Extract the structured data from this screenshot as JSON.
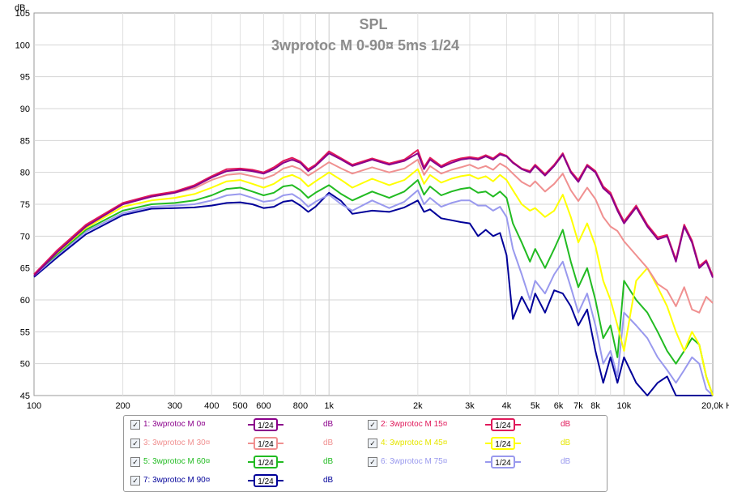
{
  "chart_data": {
    "type": "line",
    "title": "SPL",
    "subtitle": "3wprotoc M 0-90¤ 5ms 1/24",
    "ylabel": "dB",
    "xlabel_unit": "Hz",
    "x_scale": "log",
    "xlim": [
      100,
      20000
    ],
    "ylim": [
      45,
      105
    ],
    "grid": true,
    "y_ticks": [
      45,
      50,
      55,
      60,
      65,
      70,
      75,
      80,
      85,
      90,
      95,
      100,
      105
    ],
    "x_tick_labels": [
      {
        "value": 100,
        "label": "100"
      },
      {
        "value": 200,
        "label": "200"
      },
      {
        "value": 300,
        "label": "300"
      },
      {
        "value": 400,
        "label": "400"
      },
      {
        "value": 500,
        "label": "500"
      },
      {
        "value": 600,
        "label": "600"
      },
      {
        "value": 800,
        "label": "800"
      },
      {
        "value": 1000,
        "label": "1k"
      },
      {
        "value": 2000,
        "label": "2k"
      },
      {
        "value": 3000,
        "label": "3k"
      },
      {
        "value": 4000,
        "label": "4k"
      },
      {
        "value": 5000,
        "label": "5k"
      },
      {
        "value": 6000,
        "label": "6k"
      },
      {
        "value": 7000,
        "label": "7k"
      },
      {
        "value": 8000,
        "label": "8k"
      },
      {
        "value": 10000,
        "label": "10k"
      },
      {
        "value": 20000,
        "label": "20,0k Hz"
      }
    ],
    "series": [
      {
        "name": "1: 3wprotoc M 0¤",
        "color": "#8b008b",
        "x": [
          100,
          120,
          150,
          200,
          250,
          300,
          350,
          400,
          450,
          500,
          550,
          600,
          650,
          700,
          750,
          800,
          850,
          900,
          1000,
          1100,
          1200,
          1400,
          1600,
          1800,
          2000,
          2100,
          2200,
          2400,
          2600,
          2800,
          3000,
          3200,
          3400,
          3600,
          3800,
          4000,
          4200,
          4500,
          4800,
          5000,
          5400,
          5800,
          6200,
          6600,
          7000,
          7500,
          8000,
          8500,
          9000,
          9500,
          10000,
          11000,
          12000,
          13000,
          14000,
          15000,
          16000,
          17000,
          18000,
          19000,
          20000
        ],
        "y": [
          63.8,
          67.5,
          71.5,
          75.0,
          76.2,
          76.8,
          77.8,
          79.2,
          80.2,
          80.4,
          80.2,
          79.8,
          80.5,
          81.5,
          82.0,
          81.5,
          80.2,
          81.0,
          83.0,
          82.0,
          81.0,
          82.0,
          81.2,
          81.8,
          83.0,
          80.5,
          82.0,
          80.8,
          81.5,
          82.0,
          82.2,
          82.0,
          82.5,
          82.0,
          82.8,
          82.5,
          81.5,
          80.5,
          80.0,
          81.0,
          79.5,
          81.0,
          82.8,
          80.0,
          78.5,
          81.0,
          80.0,
          77.5,
          76.5,
          74.0,
          72.0,
          74.5,
          71.5,
          69.5,
          70.0,
          66.0,
          71.5,
          69.0,
          65.0,
          66.0,
          63.5
        ]
      },
      {
        "name": "2: 3wprotoc M 15¤",
        "color": "#e0195a",
        "x": [
          100,
          120,
          150,
          200,
          250,
          300,
          350,
          400,
          450,
          500,
          550,
          600,
          650,
          700,
          750,
          800,
          850,
          900,
          1000,
          1100,
          1200,
          1400,
          1600,
          1800,
          2000,
          2100,
          2200,
          2400,
          2600,
          2800,
          3000,
          3200,
          3400,
          3600,
          3800,
          4000,
          4200,
          4500,
          4800,
          5000,
          5400,
          5800,
          6200,
          6600,
          7000,
          7500,
          8000,
          8500,
          9000,
          9500,
          10000,
          11000,
          12000,
          13000,
          14000,
          15000,
          16000,
          17000,
          18000,
          19000,
          20000
        ],
        "y": [
          64.0,
          67.8,
          71.8,
          75.2,
          76.4,
          77.0,
          78.0,
          79.4,
          80.5,
          80.6,
          80.4,
          80.0,
          80.8,
          81.8,
          82.3,
          81.7,
          80.5,
          81.2,
          83.3,
          82.2,
          81.2,
          82.2,
          81.4,
          82.0,
          83.5,
          80.8,
          82.3,
          81.0,
          81.8,
          82.2,
          82.4,
          82.2,
          82.7,
          82.2,
          83.0,
          82.6,
          81.6,
          80.6,
          80.2,
          81.2,
          79.7,
          81.2,
          83.0,
          80.2,
          78.8,
          81.2,
          80.2,
          77.8,
          76.8,
          74.3,
          72.3,
          74.8,
          71.8,
          69.8,
          70.2,
          66.3,
          71.8,
          69.3,
          65.3,
          66.2,
          63.8
        ]
      },
      {
        "name": "3: 3wprotoc M 30¤",
        "color": "#f09090",
        "x": [
          100,
          120,
          150,
          200,
          250,
          300,
          350,
          400,
          450,
          500,
          550,
          600,
          650,
          700,
          750,
          800,
          850,
          900,
          1000,
          1100,
          1200,
          1400,
          1600,
          1800,
          2000,
          2100,
          2200,
          2400,
          2600,
          2800,
          3000,
          3200,
          3400,
          3600,
          3800,
          4000,
          4200,
          4500,
          4800,
          5000,
          5400,
          5800,
          6200,
          6600,
          7000,
          7500,
          8000,
          8500,
          9000,
          9500,
          10000,
          11000,
          12000,
          13000,
          14000,
          15000,
          16000,
          17000,
          18000,
          19000,
          20000
        ],
        "y": [
          64.0,
          67.6,
          71.6,
          75.0,
          76.2,
          76.8,
          77.5,
          78.8,
          79.6,
          79.8,
          79.4,
          79.0,
          79.6,
          80.6,
          81.0,
          80.5,
          79.5,
          80.2,
          81.6,
          80.6,
          79.8,
          80.8,
          80.0,
          80.6,
          82.0,
          79.6,
          81.0,
          79.8,
          80.4,
          80.8,
          81.2,
          80.6,
          81.0,
          80.4,
          81.4,
          80.8,
          79.8,
          78.5,
          77.8,
          78.6,
          77.0,
          78.2,
          79.8,
          77.2,
          75.5,
          77.6,
          75.8,
          73.0,
          71.5,
          70.8,
          69.2,
          67.0,
          65.0,
          62.5,
          61.5,
          59.0,
          62.0,
          58.5,
          58.0,
          60.5,
          59.5
        ]
      },
      {
        "name": "4: 3wprotoc M 45¤",
        "color": "#ffff00",
        "x": [
          100,
          120,
          150,
          200,
          250,
          300,
          350,
          400,
          450,
          500,
          550,
          600,
          650,
          700,
          750,
          800,
          850,
          900,
          1000,
          1100,
          1200,
          1400,
          1600,
          1800,
          2000,
          2100,
          2200,
          2400,
          2600,
          2800,
          3000,
          3200,
          3400,
          3600,
          3800,
          4000,
          4200,
          4500,
          4800,
          5000,
          5400,
          5800,
          6200,
          6600,
          7000,
          7500,
          8000,
          8500,
          9000,
          9500,
          10000,
          11000,
          12000,
          13000,
          14000,
          15000,
          16000,
          17000,
          18000,
          19000,
          20000
        ],
        "y": [
          64.0,
          67.4,
          71.3,
          74.6,
          75.6,
          76.0,
          76.6,
          77.6,
          78.6,
          78.8,
          78.2,
          77.6,
          78.2,
          79.2,
          79.6,
          79.0,
          77.8,
          78.6,
          80.0,
          78.8,
          77.6,
          79.0,
          78.0,
          78.8,
          80.5,
          78.2,
          79.6,
          78.4,
          79.0,
          79.4,
          79.6,
          79.0,
          79.4,
          78.6,
          79.6,
          78.8,
          77.2,
          75.0,
          74.0,
          74.4,
          73.0,
          74.0,
          76.5,
          73.0,
          69.0,
          72.0,
          68.5,
          63.0,
          60.0,
          56.0,
          52.0,
          63.0,
          65.0,
          62.0,
          59.0,
          55.0,
          52.0,
          55.0,
          53.0,
          48.0,
          45.0
        ]
      },
      {
        "name": "5: 3wprotoc M 60¤",
        "color": "#22bb22",
        "x": [
          100,
          120,
          150,
          200,
          250,
          300,
          350,
          400,
          450,
          500,
          550,
          600,
          650,
          700,
          750,
          800,
          850,
          900,
          1000,
          1100,
          1200,
          1400,
          1600,
          1800,
          2000,
          2100,
          2200,
          2400,
          2600,
          2800,
          3000,
          3200,
          3400,
          3600,
          3800,
          4000,
          4200,
          4500,
          4800,
          5000,
          5400,
          5800,
          6200,
          6600,
          7000,
          7500,
          8000,
          8500,
          9000,
          9500,
          10000,
          11000,
          12000,
          13000,
          14000,
          15000,
          16000,
          17000,
          18000,
          19000,
          20000
        ],
        "y": [
          64.0,
          67.2,
          71.0,
          74.0,
          75.0,
          75.2,
          75.6,
          76.4,
          77.4,
          77.6,
          77.0,
          76.4,
          76.8,
          77.8,
          78.0,
          77.2,
          76.0,
          76.8,
          78.0,
          76.6,
          75.6,
          77.0,
          76.0,
          77.0,
          78.8,
          76.5,
          77.8,
          76.4,
          77.0,
          77.4,
          77.6,
          76.8,
          77.0,
          76.2,
          77.0,
          76.0,
          72.0,
          69.0,
          66.0,
          68.0,
          65.0,
          68.0,
          71.0,
          66.0,
          62.0,
          65.0,
          60.0,
          54.0,
          56.0,
          51.0,
          63.0,
          60.0,
          58.0,
          55.0,
          52.0,
          50.0,
          52.0,
          54.0,
          53.0,
          48.0,
          45.0
        ]
      },
      {
        "name": "6: 3wprotoc M 75¤",
        "color": "#9999ee",
        "x": [
          100,
          120,
          150,
          200,
          250,
          300,
          350,
          400,
          450,
          500,
          550,
          600,
          650,
          700,
          750,
          800,
          850,
          900,
          1000,
          1100,
          1200,
          1400,
          1600,
          1800,
          2000,
          2100,
          2200,
          2400,
          2600,
          2800,
          3000,
          3200,
          3400,
          3600,
          3800,
          4000,
          4200,
          4500,
          4800,
          5000,
          5400,
          5800,
          6200,
          6600,
          7000,
          7500,
          8000,
          8500,
          9000,
          9500,
          10000,
          11000,
          12000,
          13000,
          14000,
          15000,
          16000,
          17000,
          18000,
          19000,
          20000
        ],
        "y": [
          63.8,
          67.0,
          70.7,
          73.6,
          74.6,
          74.8,
          75.0,
          75.6,
          76.4,
          76.6,
          76.0,
          75.4,
          75.6,
          76.4,
          76.6,
          75.8,
          74.6,
          75.4,
          76.5,
          75.0,
          74.0,
          75.6,
          74.4,
          75.4,
          77.2,
          75.0,
          76.0,
          74.6,
          75.2,
          75.6,
          75.6,
          74.8,
          74.8,
          74.0,
          74.6,
          73.0,
          68.0,
          64.0,
          60.0,
          63.0,
          61.0,
          64.0,
          66.0,
          62.0,
          58.0,
          61.0,
          56.0,
          50.0,
          52.0,
          48.0,
          58.0,
          56.0,
          54.0,
          51.0,
          49.0,
          47.0,
          49.0,
          51.0,
          50.0,
          46.0,
          45.0
        ]
      },
      {
        "name": "7: 3wprotoc M 90¤",
        "color": "#000099",
        "x": [
          100,
          120,
          150,
          200,
          250,
          300,
          350,
          400,
          450,
          500,
          550,
          600,
          650,
          700,
          750,
          800,
          850,
          900,
          1000,
          1100,
          1200,
          1400,
          1600,
          1800,
          2000,
          2100,
          2200,
          2400,
          2600,
          2800,
          3000,
          3200,
          3400,
          3600,
          3800,
          4000,
          4200,
          4500,
          4800,
          5000,
          5400,
          5800,
          6200,
          6600,
          7000,
          7500,
          8000,
          8500,
          9000,
          9500,
          10000,
          11000,
          12000,
          13000,
          14000,
          15000,
          16000,
          17000,
          18000,
          19000,
          20000
        ],
        "y": [
          63.6,
          66.7,
          70.3,
          73.3,
          74.3,
          74.4,
          74.5,
          74.8,
          75.2,
          75.3,
          75.0,
          74.4,
          74.6,
          75.4,
          75.6,
          74.8,
          73.8,
          74.6,
          76.8,
          75.5,
          73.5,
          74.0,
          73.8,
          74.5,
          75.6,
          73.8,
          74.2,
          72.8,
          72.5,
          72.2,
          72.0,
          70.0,
          71.0,
          70.0,
          70.5,
          67.0,
          57.0,
          60.5,
          58.0,
          61.0,
          58.0,
          61.5,
          61.0,
          59.0,
          56.0,
          58.5,
          52.0,
          47.0,
          51.0,
          47.0,
          51.0,
          47.0,
          45.0,
          47.0,
          48.0,
          45.0,
          45.0,
          45.0,
          45.0,
          45.0,
          45.0
        ]
      }
    ]
  },
  "legend": {
    "items": [
      {
        "label": "1: 3wprotoc M 0¤",
        "color": "#8b008b",
        "smoothing": "1/24",
        "unit": "dB",
        "checked": true
      },
      {
        "label": "2: 3wprotoc M 15¤",
        "color": "#e0195a",
        "smoothing": "1/24",
        "unit": "dB",
        "checked": true
      },
      {
        "label": "3: 3wprotoc M 30¤",
        "color": "#f09090",
        "smoothing": "1/24",
        "unit": "dB",
        "checked": true
      },
      {
        "label": "4: 3wprotoc M 45¤",
        "color": "#ffff00",
        "smoothing": "1/24",
        "unit": "dB",
        "checked": true
      },
      {
        "label": "5: 3wprotoc M 60¤",
        "color": "#22bb22",
        "smoothing": "1/24",
        "unit": "dB",
        "checked": true
      },
      {
        "label": "6: 3wprotoc M 75¤",
        "color": "#9999ee",
        "smoothing": "1/24",
        "unit": "dB",
        "checked": true
      },
      {
        "label": "7: 3wprotoc M 90¤",
        "color": "#000099",
        "smoothing": "1/24",
        "unit": "dB",
        "checked": true
      }
    ],
    "checkbox_glyph": "✓"
  }
}
